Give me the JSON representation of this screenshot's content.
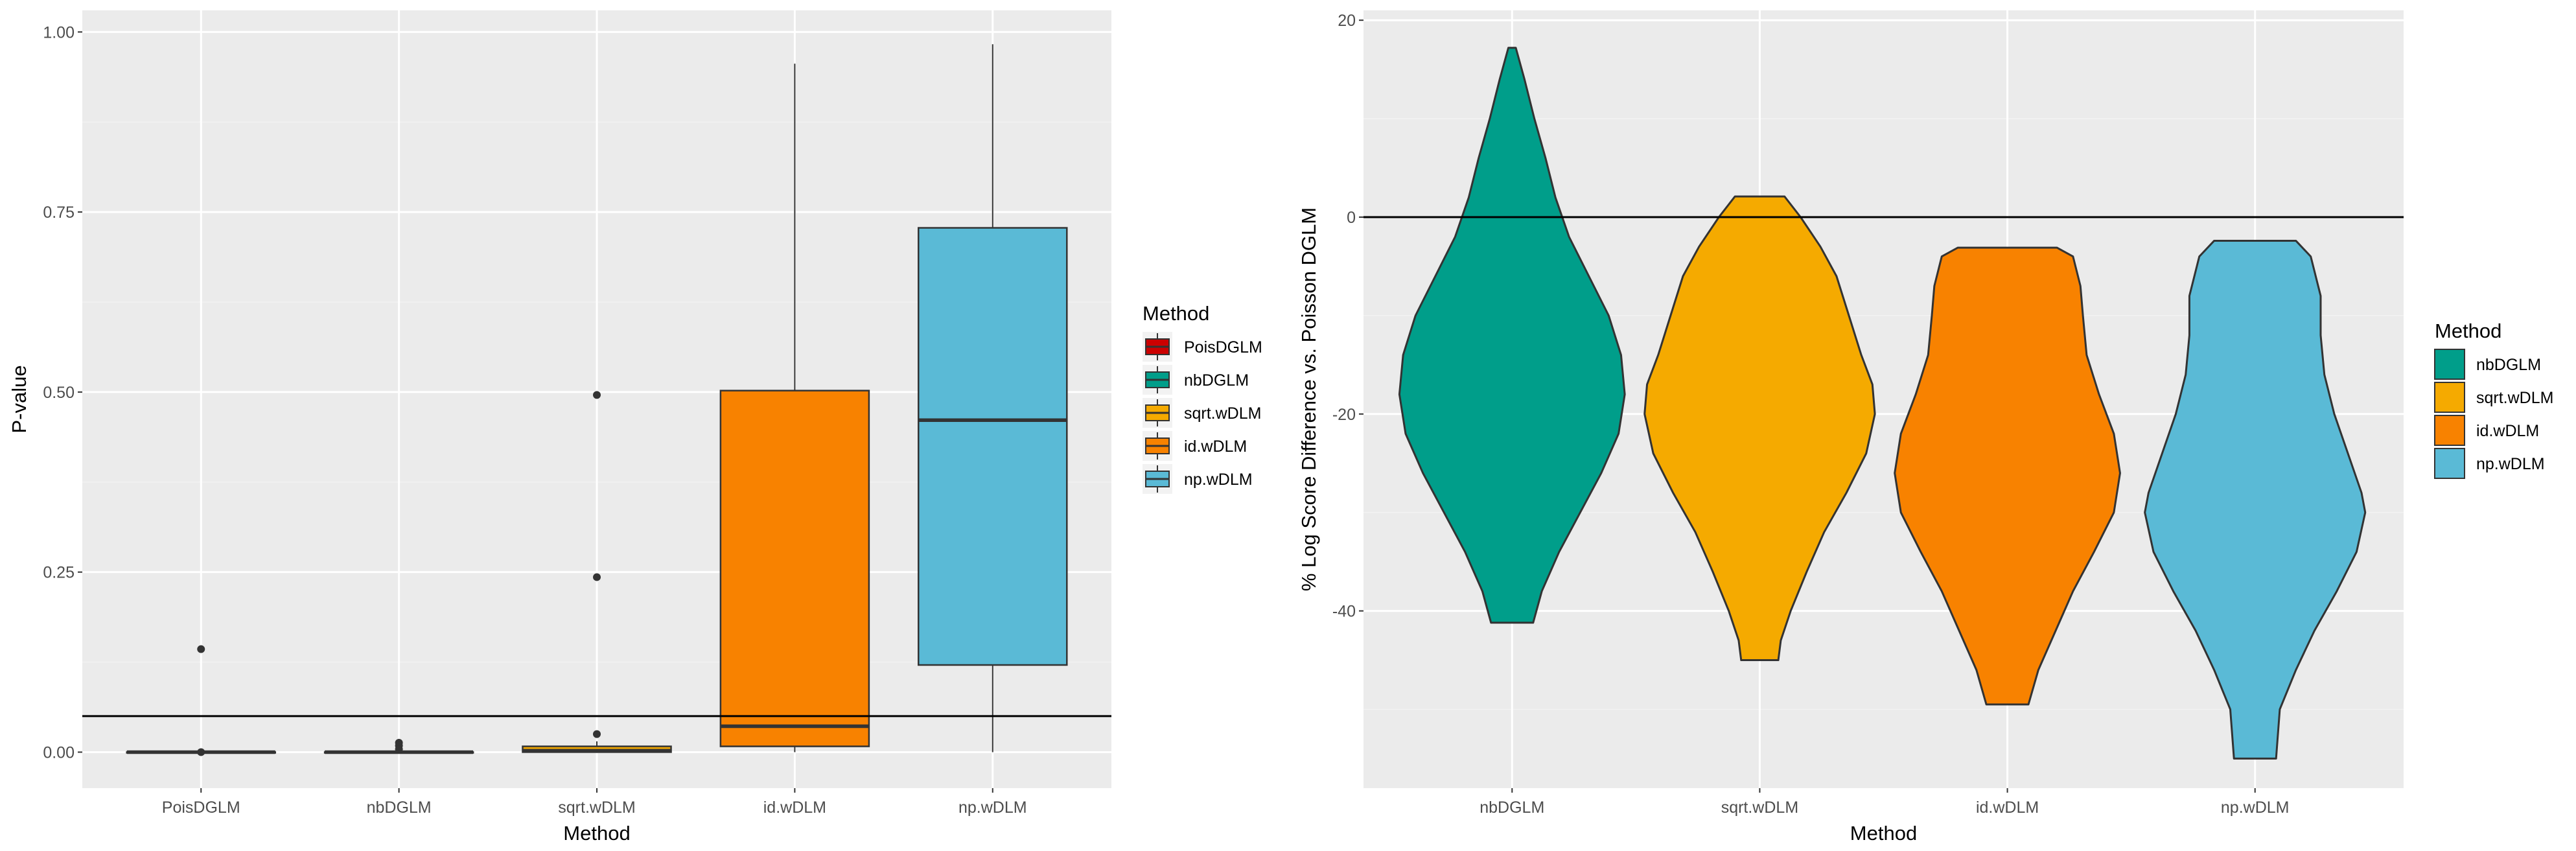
{
  "chart_data": [
    {
      "type": "boxplot",
      "xlabel": "Method",
      "ylabel": "P-value",
      "ylim": [
        -0.05,
        1.03
      ],
      "yticks": [
        0.0,
        0.25,
        0.5,
        0.75,
        1.0
      ],
      "ytick_labels": [
        "0.00",
        "0.25",
        "0.50",
        "0.75",
        "1.00"
      ],
      "grid": true,
      "hline": 0.05,
      "legend": {
        "title": "Method",
        "placement": "right",
        "entries": [
          "PoisDGLM",
          "nbDGLM",
          "sqrt.wDLM",
          "id.wDLM",
          "np.wDLM"
        ]
      },
      "categories": [
        "PoisDGLM",
        "nbDGLM",
        "sqrt.wDLM",
        "id.wDLM",
        "np.wDLM"
      ],
      "boxes": [
        {
          "name": "PoisDGLM",
          "color": "#CC0000",
          "min": 0.0,
          "q1": 0.0,
          "median": 0.0,
          "q3": 0.0,
          "max": 0.0,
          "outliers": [
            0.143,
            0.0
          ]
        },
        {
          "name": "nbDGLM",
          "color": "#009E8A",
          "min": 0.0,
          "q1": 0.0,
          "median": 0.0,
          "q3": 0.0,
          "max": 0.0,
          "outliers": [
            0.013,
            0.009,
            0.004
          ]
        },
        {
          "name": "sqrt.wDLM",
          "color": "#F5AA00",
          "min": 0.0,
          "q1": 0.0,
          "median": 0.002,
          "q3": 0.008,
          "max": 0.015,
          "outliers": [
            0.496,
            0.243,
            0.025
          ]
        },
        {
          "name": "id.wDLM",
          "color": "#F88200",
          "min": 0.0,
          "q1": 0.008,
          "median": 0.036,
          "q3": 0.502,
          "max": 0.956,
          "outliers": []
        },
        {
          "name": "np.wDLM",
          "color": "#5ABAD6",
          "min": 0.0,
          "q1": 0.121,
          "median": 0.461,
          "q3": 0.728,
          "max": 0.983,
          "outliers": []
        }
      ]
    },
    {
      "type": "violin",
      "xlabel": "Method",
      "ylabel": "% Log Score Difference vs. Poisson DGLM",
      "ylim": [
        -58,
        21
      ],
      "yticks": [
        20,
        0,
        -20,
        -40
      ],
      "ytick_labels": [
        "20",
        "0",
        "-20",
        "-40"
      ],
      "grid": true,
      "hline": 0,
      "legend": {
        "title": "Method",
        "placement": "right",
        "entries": [
          "nbDGLM",
          "sqrt.wDLM",
          "id.wDLM",
          "np.wDLM"
        ]
      },
      "categories": [
        "nbDGLM",
        "sqrt.wDLM",
        "id.wDLM",
        "np.wDLM"
      ],
      "violins": [
        {
          "name": "nbDGLM",
          "color": "#009E8A",
          "min": -41.2,
          "max": 17.2,
          "profile": [
            [
              17.2,
              0.03
            ],
            [
              14,
              0.1
            ],
            [
              10,
              0.18
            ],
            [
              6,
              0.27
            ],
            [
              2,
              0.35
            ],
            [
              -2,
              0.46
            ],
            [
              -6,
              0.62
            ],
            [
              -10,
              0.78
            ],
            [
              -14,
              0.88
            ],
            [
              -18,
              0.91
            ],
            [
              -22,
              0.86
            ],
            [
              -26,
              0.72
            ],
            [
              -30,
              0.55
            ],
            [
              -34,
              0.38
            ],
            [
              -38,
              0.24
            ],
            [
              -41.2,
              0.17
            ]
          ]
        },
        {
          "name": "sqrt.wDLM",
          "color": "#F5AA00",
          "min": -45.0,
          "max": 2.1,
          "profile": [
            [
              2.1,
              0.2
            ],
            [
              0,
              0.33
            ],
            [
              -3,
              0.49
            ],
            [
              -6,
              0.62
            ],
            [
              -10,
              0.72
            ],
            [
              -14,
              0.82
            ],
            [
              -17,
              0.91
            ],
            [
              -20,
              0.93
            ],
            [
              -24,
              0.86
            ],
            [
              -28,
              0.7
            ],
            [
              -32,
              0.52
            ],
            [
              -36,
              0.38
            ],
            [
              -40,
              0.25
            ],
            [
              -43,
              0.17
            ],
            [
              -45.0,
              0.15
            ]
          ]
        },
        {
          "name": "id.wDLM",
          "color": "#F88200",
          "min": -49.5,
          "max": -3.1,
          "profile": [
            [
              -3.1,
              0.4
            ],
            [
              -4,
              0.53
            ],
            [
              -7,
              0.59
            ],
            [
              -10,
              0.61
            ],
            [
              -14,
              0.64
            ],
            [
              -18,
              0.74
            ],
            [
              -22,
              0.86
            ],
            [
              -26,
              0.91
            ],
            [
              -30,
              0.86
            ],
            [
              -34,
              0.7
            ],
            [
              -38,
              0.53
            ],
            [
              -42,
              0.39
            ],
            [
              -46,
              0.25
            ],
            [
              -49.5,
              0.17
            ]
          ]
        },
        {
          "name": "np.wDLM",
          "color": "#5ABAD6",
          "min": -55.0,
          "max": -2.4,
          "profile": [
            [
              -2.4,
              0.33
            ],
            [
              -4,
              0.45
            ],
            [
              -8,
              0.53
            ],
            [
              -12,
              0.53
            ],
            [
              -16,
              0.56
            ],
            [
              -20,
              0.64
            ],
            [
              -24,
              0.75
            ],
            [
              -28,
              0.86
            ],
            [
              -30,
              0.89
            ],
            [
              -34,
              0.82
            ],
            [
              -38,
              0.66
            ],
            [
              -42,
              0.48
            ],
            [
              -46,
              0.33
            ],
            [
              -50,
              0.2
            ],
            [
              -55.0,
              0.17
            ]
          ]
        }
      ]
    }
  ]
}
